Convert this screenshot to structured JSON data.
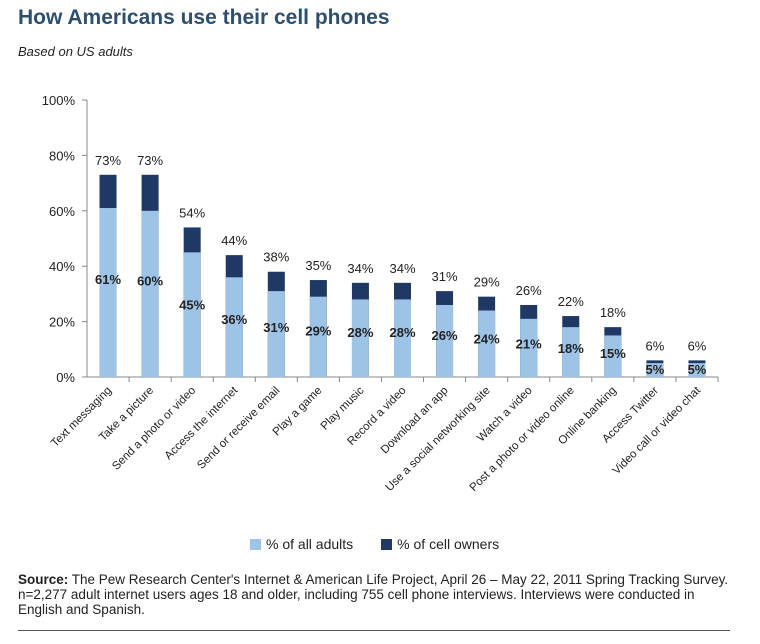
{
  "header": {
    "title": "How Americans use their cell phones",
    "subtitle": "Based on US adults"
  },
  "legend": {
    "all_adults": "% of all adults",
    "cell_owners": "% of cell owners"
  },
  "source": {
    "label": "Source:",
    "text": " The Pew Research Center's Internet & American Life Project, April 26 – May 22, 2011 Spring Tracking Survey. n=2,277 adult internet users ages 18 and older, including 755 cell phone interviews. Interviews were conducted in English and Spanish."
  },
  "colors": {
    "all_adults": "#9dc3e6",
    "cell_owners": "#1f3864"
  },
  "chart_data": {
    "type": "bar",
    "stacked_overlay": true,
    "categories": [
      "Text messaging",
      "Take a picture",
      "Send a photo or video",
      "Access the internet",
      "Send or receive email",
      "Play a game",
      "Play music",
      "Record a video",
      "Download an app",
      "Use a social networking site",
      "Watch a video",
      "Post a photo or video online",
      "Online banking",
      "Access Twitter",
      "Video call or video chat"
    ],
    "series": [
      {
        "name": "% of all adults",
        "values": [
          61,
          60,
          45,
          36,
          31,
          29,
          28,
          28,
          26,
          24,
          21,
          18,
          15,
          5,
          5
        ]
      },
      {
        "name": "% of cell owners",
        "values": [
          73,
          73,
          54,
          44,
          38,
          35,
          34,
          34,
          31,
          29,
          26,
          22,
          18,
          6,
          6
        ]
      }
    ],
    "ylim": [
      0,
      100
    ],
    "yticks": [
      "0%",
      "20%",
      "40%",
      "60%",
      "80%",
      "100%"
    ],
    "legend_position": "bottom",
    "grid": false
  }
}
